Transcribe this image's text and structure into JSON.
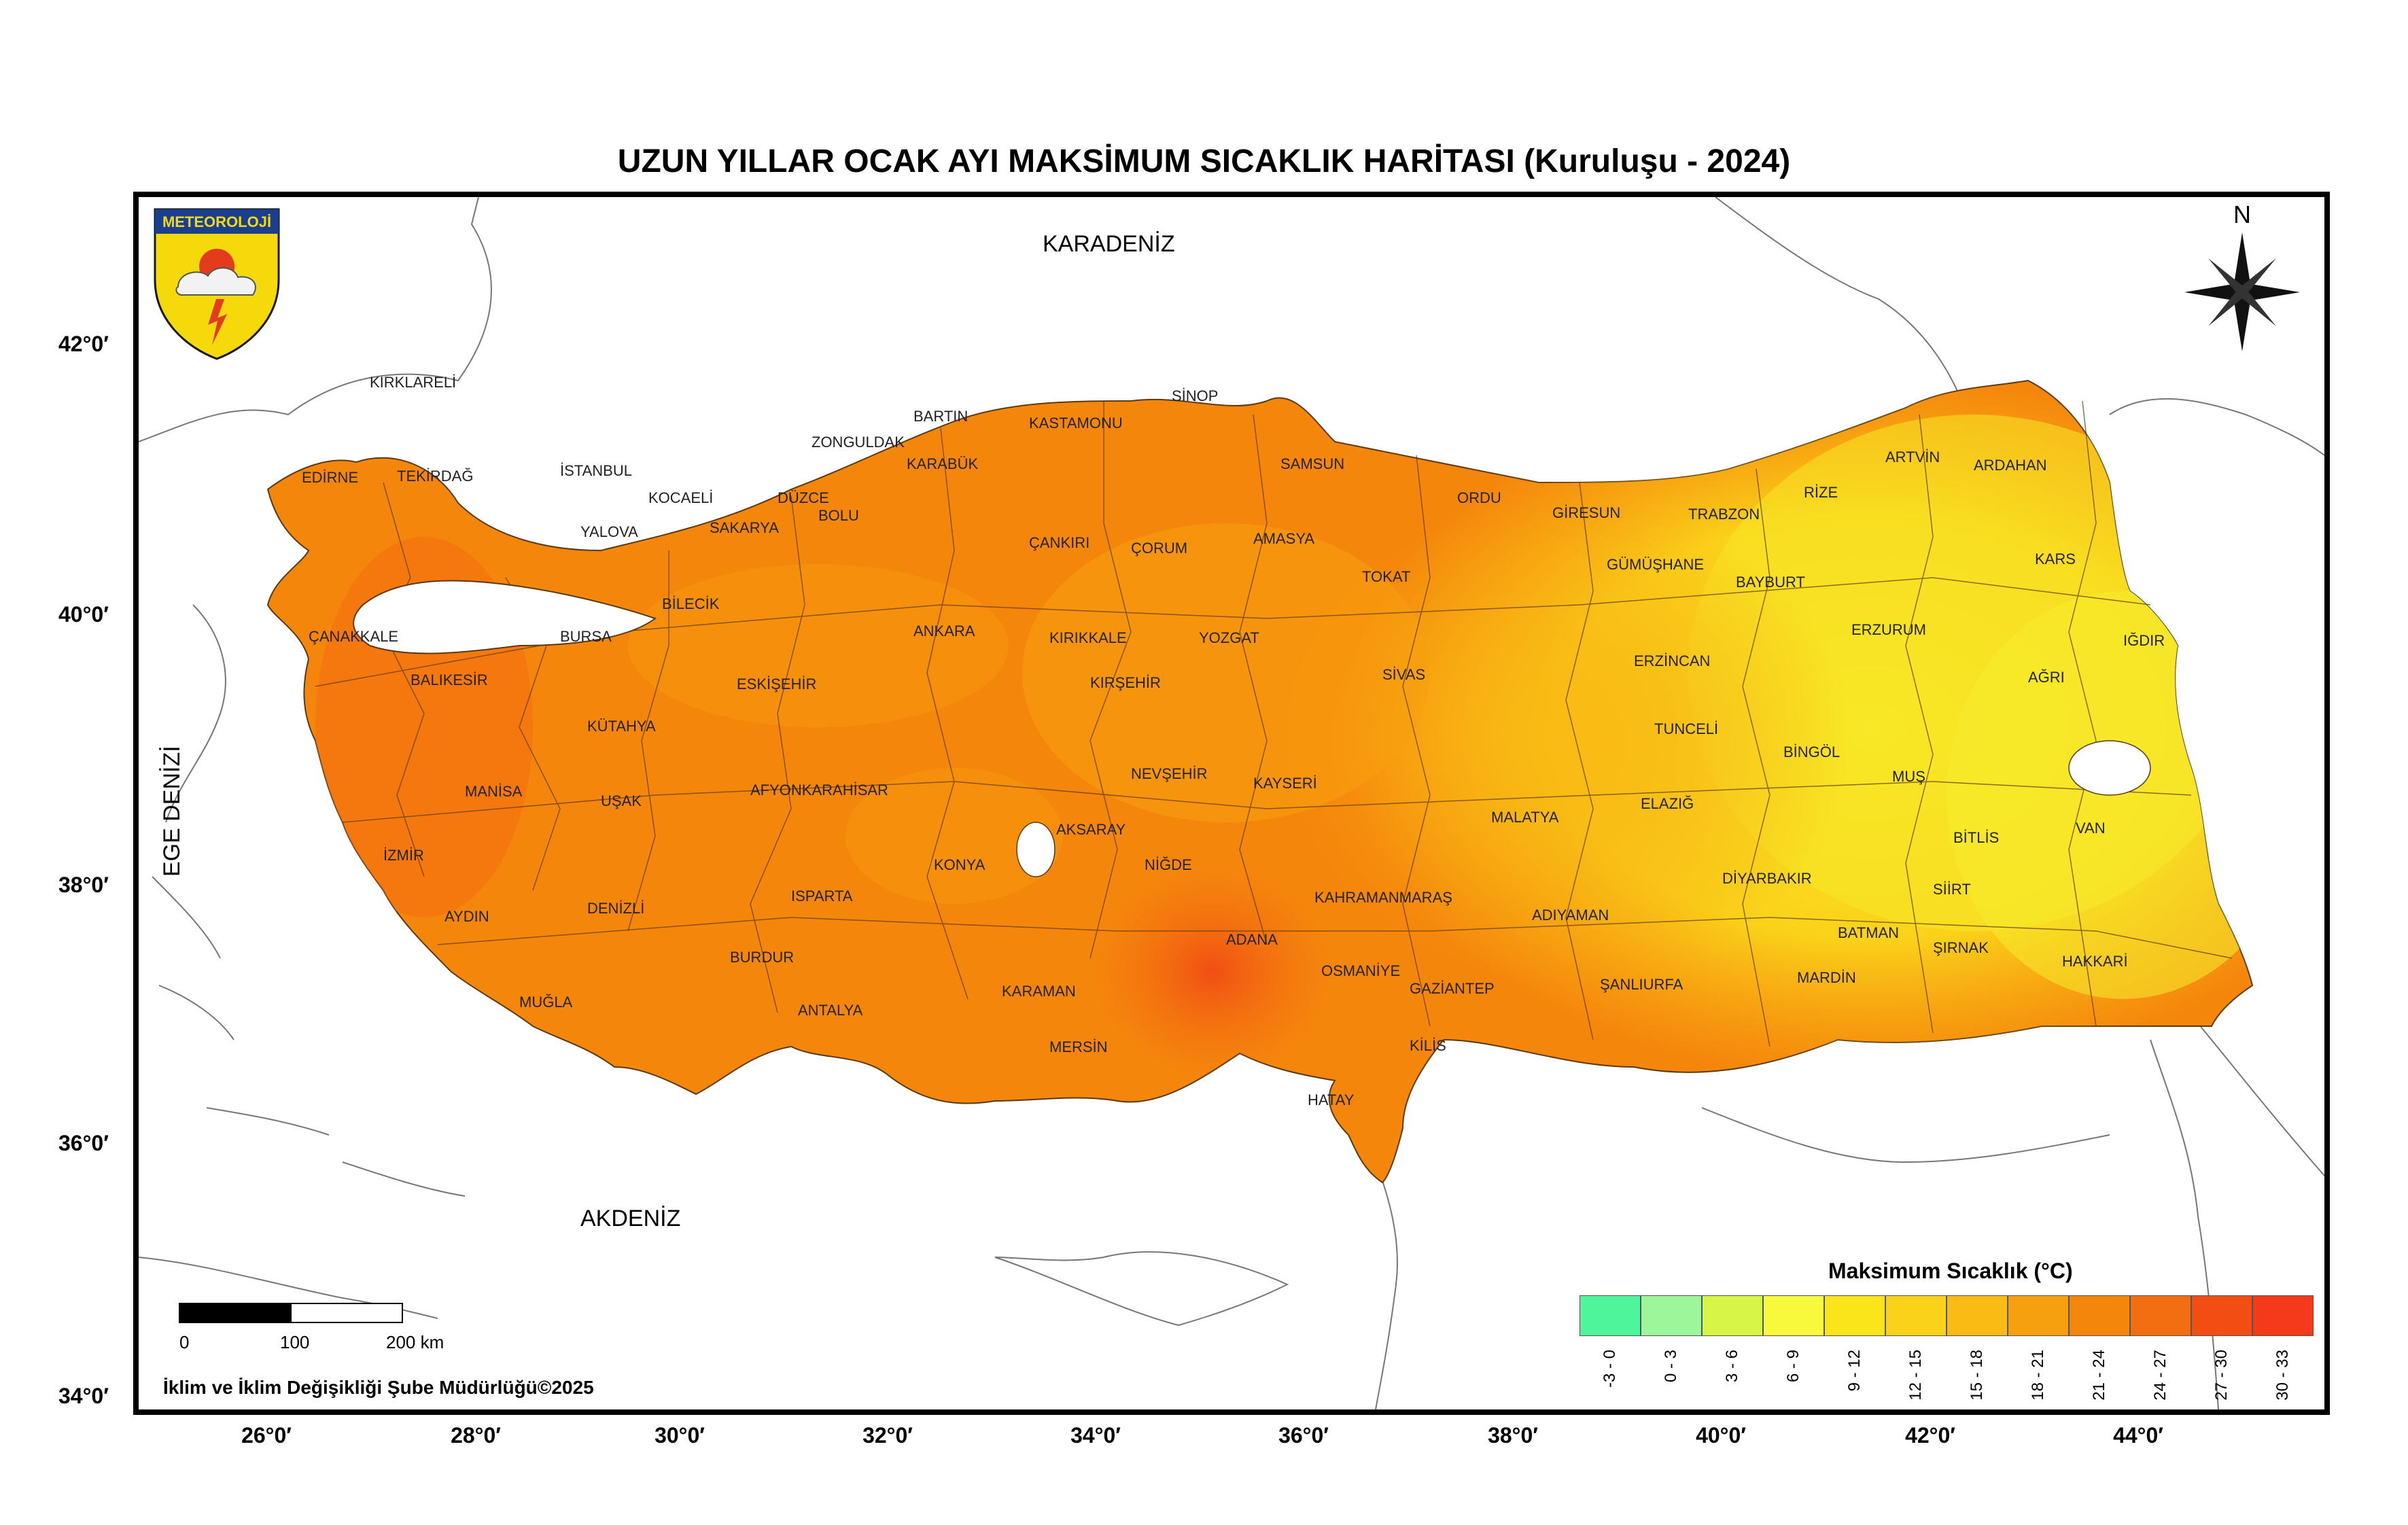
{
  "title": "UZUN YILLAR OCAK AYI MAKSİMUM SICAKLIK HARİTASI (Kuruluşu - 2024)",
  "logo": {
    "text": "METEOROLOJİ",
    "icon": "meteoroloji-emblem-icon"
  },
  "north_label": "N",
  "seas": {
    "north": "KARADENİZ",
    "south": "AKDENİZ",
    "west": "EGE DENİZİ"
  },
  "latitude_labels": [
    "42°0′",
    "40°0′",
    "38°0′",
    "36°0′",
    "34°0′"
  ],
  "longitude_labels": [
    "26°0′",
    "28°0′",
    "30°0′",
    "32°0′",
    "34°0′",
    "36°0′",
    "38°0′",
    "40°0′",
    "42°0′",
    "44°0′"
  ],
  "scale_bar": {
    "labels": [
      "0",
      "100",
      "200 km"
    ]
  },
  "credit": "İklim ve İklim Değişikliği Şube Müdürlüğü©2025",
  "legend": {
    "title": "Maksimum Sıcaklık (°C)",
    "classes": [
      {
        "label": "-3 - 0",
        "color": "#4ef59a"
      },
      {
        "label": "0 - 3",
        "color": "#9df79a"
      },
      {
        "label": "3 - 6",
        "color": "#d6f546"
      },
      {
        "label": "6 - 9",
        "color": "#f8f83c"
      },
      {
        "label": "9 - 12",
        "color": "#fae51a"
      },
      {
        "label": "12 - 15",
        "color": "#fad21a"
      },
      {
        "label": "15 - 18",
        "color": "#f9bb14"
      },
      {
        "label": "18 - 21",
        "color": "#f7a00f"
      },
      {
        "label": "21 - 24",
        "color": "#f5860c"
      },
      {
        "label": "24 - 27",
        "color": "#f26e10"
      },
      {
        "label": "27 - 30",
        "color": "#f24e14"
      },
      {
        "label": "30 - 33",
        "color": "#f43a1a"
      }
    ]
  },
  "provinces": [
    "KIRKLARELİ",
    "EDİRNE",
    "TEKİRDAĞ",
    "İSTANBUL",
    "KOCAELİ",
    "YALOVA",
    "SAKARYA",
    "DÜZCE",
    "BOLU",
    "ZONGULDAK",
    "BARTIN",
    "KARABÜK",
    "KASTAMONU",
    "SİNOP",
    "SAMSUN",
    "ORDU",
    "GİRESUN",
    "TRABZON",
    "RİZE",
    "ARTVİN",
    "ARDAHAN",
    "KARS",
    "IĞDIR",
    "AĞRI",
    "ERZURUM",
    "BAYBURT",
    "GÜMÜŞHANE",
    "ERZİNCAN",
    "TUNCELİ",
    "BİNGÖL",
    "MUŞ",
    "BİTLİS",
    "VAN",
    "HAKKARİ",
    "ŞIRNAK",
    "SİİRT",
    "BATMAN",
    "MARDİN",
    "DİYARBAKIR",
    "ELAZIĞ",
    "MALATYA",
    "ADIYAMAN",
    "ŞANLIURFA",
    "GAZİANTEP",
    "KİLİS",
    "HATAY",
    "OSMANİYE",
    "ADANA",
    "KAHRAMANMARAŞ",
    "KAYSERİ",
    "SİVAS",
    "TOKAT",
    "AMASYA",
    "ÇORUM",
    "YOZGAT",
    "ÇANKIRI",
    "KIRIKKALE",
    "KIRŞEHİR",
    "NEVŞEHİR",
    "NİĞDE",
    "AKSARAY",
    "KONYA",
    "KARAMAN",
    "MERSİN",
    "ANTALYA",
    "BURDUR",
    "ISPARTA",
    "AFYONKARAHİSAR",
    "DENİZLİ",
    "MUĞLA",
    "AYDIN",
    "İZMİR",
    "MANİSA",
    "UŞAK",
    "KÜTAHYA",
    "ESKİŞEHİR",
    "BİLECİK",
    "BURSA",
    "BALIKESİR",
    "ÇANAKKALE",
    "ANKARA"
  ]
}
